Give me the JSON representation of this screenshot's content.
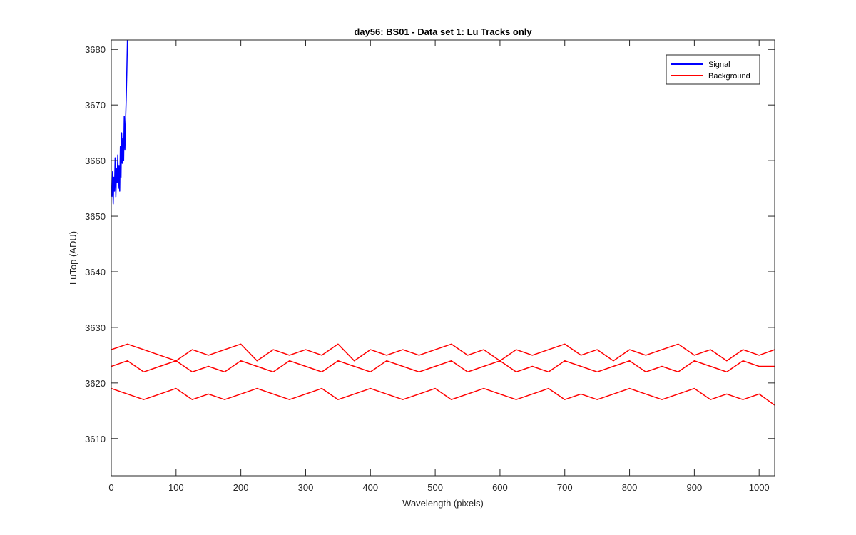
{
  "chart_data": {
    "type": "line",
    "title": "day56: BS01 - Data set 1: Lu Tracks only",
    "xlabel": "Wavelength (pixels)",
    "ylabel": "LuTop (ADU)",
    "xlim": [
      0,
      1024
    ],
    "ylim": [
      3603.3,
      3681.7
    ],
    "xticks": [
      0,
      100,
      200,
      300,
      400,
      500,
      600,
      700,
      800,
      900,
      1000
    ],
    "yticks": [
      3610,
      3620,
      3630,
      3640,
      3650,
      3660,
      3670,
      3680
    ],
    "grid": false,
    "legend": {
      "position": "top-right",
      "entries": [
        "Signal",
        "Background"
      ]
    },
    "series": [
      {
        "name": "Signal",
        "color": "#0000ff",
        "x": [
          1,
          2,
          3,
          4,
          5,
          6,
          7,
          8,
          9,
          10,
          11,
          12,
          13,
          14,
          15,
          16,
          17,
          18,
          19,
          20,
          21,
          22,
          23,
          24,
          25
        ],
        "y": [
          3653.5,
          3658,
          3652.2,
          3657,
          3654.5,
          3660.5,
          3653.5,
          3658.5,
          3656,
          3661,
          3655,
          3659,
          3654.5,
          3662.5,
          3657,
          3665,
          3659.5,
          3664,
          3660,
          3668,
          3662,
          3667,
          3671,
          3676,
          3682
        ]
      },
      {
        "name": "Background",
        "color": "#ff0000",
        "x": [
          0,
          25,
          50,
          75,
          100,
          125,
          150,
          175,
          200,
          225,
          250,
          275,
          300,
          325,
          350,
          375,
          400,
          425,
          450,
          475,
          500,
          525,
          550,
          575,
          600,
          625,
          650,
          675,
          700,
          725,
          750,
          775,
          800,
          825,
          850,
          875,
          900,
          925,
          950,
          975,
          1000,
          1024
        ],
        "y": [
          3626,
          3627,
          3626,
          3625,
          3624,
          3626,
          3625,
          3626,
          3627,
          3624,
          3626,
          3625,
          3626,
          3625,
          3627,
          3624,
          3626,
          3625,
          3626,
          3625,
          3626,
          3627,
          3625,
          3626,
          3624,
          3626,
          3625,
          3626,
          3627,
          3625,
          3626,
          3624,
          3626,
          3625,
          3626,
          3627,
          3625,
          3626,
          3624,
          3626,
          3625,
          3626
        ]
      },
      {
        "color": "#ff0000",
        "x": [
          0,
          25,
          50,
          75,
          100,
          125,
          150,
          175,
          200,
          225,
          250,
          275,
          300,
          325,
          350,
          375,
          400,
          425,
          450,
          475,
          500,
          525,
          550,
          575,
          600,
          625,
          650,
          675,
          700,
          725,
          750,
          775,
          800,
          825,
          850,
          875,
          900,
          925,
          950,
          975,
          1000,
          1024
        ],
        "y": [
          3623,
          3624,
          3622,
          3623,
          3624,
          3622,
          3623,
          3622,
          3624,
          3623,
          3622,
          3624,
          3623,
          3622,
          3624,
          3623,
          3622,
          3624,
          3623,
          3622,
          3623,
          3624,
          3622,
          3623,
          3624,
          3622,
          3623,
          3622,
          3624,
          3623,
          3622,
          3623,
          3624,
          3622,
          3623,
          3622,
          3624,
          3623,
          3622,
          3624,
          3623,
          3623
        ]
      },
      {
        "color": "#ff0000",
        "x": [
          0,
          25,
          50,
          75,
          100,
          125,
          150,
          175,
          200,
          225,
          250,
          275,
          300,
          325,
          350,
          375,
          400,
          425,
          450,
          475,
          500,
          525,
          550,
          575,
          600,
          625,
          650,
          675,
          700,
          725,
          750,
          775,
          800,
          825,
          850,
          875,
          900,
          925,
          950,
          975,
          1000,
          1024
        ],
        "y": [
          3619,
          3618,
          3617,
          3618,
          3619,
          3617,
          3618,
          3617,
          3618,
          3619,
          3618,
          3617,
          3618,
          3619,
          3617,
          3618,
          3619,
          3618,
          3617,
          3618,
          3619,
          3617,
          3618,
          3619,
          3618,
          3617,
          3618,
          3619,
          3617,
          3618,
          3617,
          3618,
          3619,
          3618,
          3617,
          3618,
          3619,
          3617,
          3618,
          3617,
          3618,
          3616
        ]
      }
    ]
  }
}
